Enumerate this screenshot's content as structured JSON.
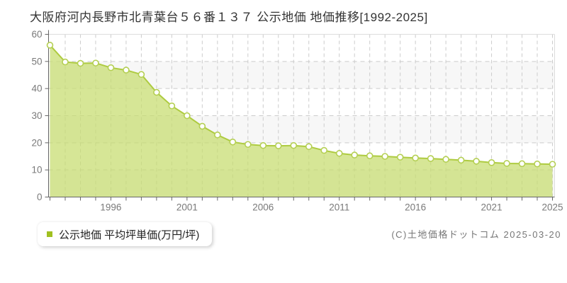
{
  "header": {
    "title": "大阪府河内長野市北青葉台５６番１３７ 公示地価 地価推移[1992-2025]"
  },
  "legend": {
    "label": "公示地価 平均坪単価(万円/坪)",
    "marker_color": "#a0c020"
  },
  "footer": {
    "copyright": "(C)土地価格ドットコム 2025-03-20"
  },
  "chart_data": {
    "type": "area",
    "title": "大阪府河内長野市北青葉台５６番１３７ 公示地価 地価推移[1992-2025]",
    "series_name": "公示地価 平均坪単価(万円/坪)",
    "x": [
      1992,
      1993,
      1994,
      1995,
      1996,
      1997,
      1998,
      1999,
      2000,
      2001,
      2002,
      2003,
      2004,
      2005,
      2006,
      2007,
      2008,
      2009,
      2010,
      2011,
      2012,
      2013,
      2014,
      2015,
      2016,
      2017,
      2018,
      2019,
      2020,
      2021,
      2022,
      2023,
      2024,
      2025
    ],
    "values": [
      56.0,
      49.8,
      49.3,
      49.4,
      47.7,
      46.8,
      45.2,
      38.6,
      33.6,
      30.0,
      26.1,
      22.9,
      20.3,
      19.4,
      19.0,
      18.9,
      19.0,
      18.6,
      17.2,
      16.1,
      15.5,
      15.2,
      15.0,
      14.7,
      14.4,
      14.2,
      13.9,
      13.6,
      13.2,
      12.7,
      12.4,
      12.3,
      12.2,
      12.1
    ],
    "xlabel": "",
    "ylabel": "万円/坪",
    "ylim": [
      0,
      60
    ],
    "yticks": [
      0,
      10,
      20,
      30,
      40,
      50,
      60
    ],
    "xtick_labels": [
      "1996",
      "2001",
      "2006",
      "2011",
      "2016",
      "2021",
      "2025"
    ],
    "xtick_years": [
      1996,
      2001,
      2006,
      2011,
      2016,
      2021,
      2025
    ],
    "grid": true,
    "legend_position": "bottom-left",
    "colors": {
      "line": "#aecb40",
      "area_fill_rgba": "198,220,110,0.72",
      "marker_fill": "#ffffff",
      "marker_stroke": "#b4cf52",
      "grid": "#cccccc",
      "band": "#f7f7f7",
      "axis": "#666666",
      "tick_label": "#7a7a7a",
      "plot_border": "#dddddd"
    }
  }
}
